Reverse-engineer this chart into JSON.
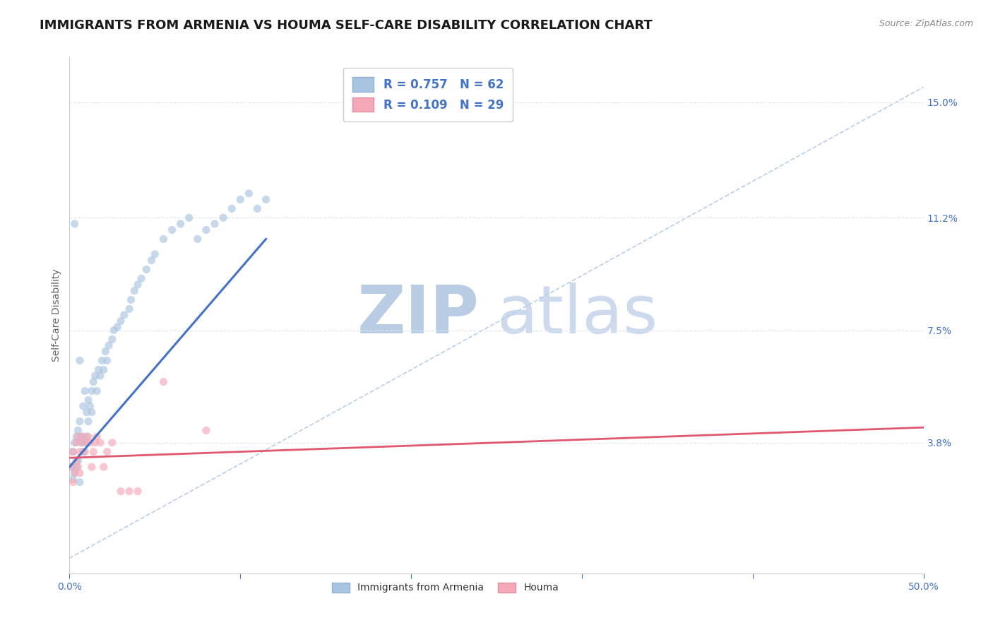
{
  "title": "IMMIGRANTS FROM ARMENIA VS HOUMA SELF-CARE DISABILITY CORRELATION CHART",
  "source": "Source: ZipAtlas.com",
  "ylabel": "Self-Care Disability",
  "xlim": [
    0.0,
    0.5
  ],
  "ylim": [
    -0.005,
    0.165
  ],
  "ytick_positions": [
    0.038,
    0.075,
    0.112,
    0.15
  ],
  "ytick_labels": [
    "3.8%",
    "7.5%",
    "11.2%",
    "15.0%"
  ],
  "legend1_label": "R = 0.757   N = 62",
  "legend2_label": "R = 0.109   N = 29",
  "legend1_color": "#a8c4e0",
  "legend2_color": "#f4a8b8",
  "blue_scatter_x": [
    0.001,
    0.002,
    0.002,
    0.003,
    0.003,
    0.004,
    0.004,
    0.005,
    0.005,
    0.006,
    0.006,
    0.007,
    0.007,
    0.008,
    0.008,
    0.009,
    0.009,
    0.01,
    0.01,
    0.011,
    0.011,
    0.012,
    0.013,
    0.013,
    0.014,
    0.015,
    0.016,
    0.017,
    0.018,
    0.019,
    0.02,
    0.021,
    0.022,
    0.023,
    0.025,
    0.026,
    0.028,
    0.03,
    0.032,
    0.035,
    0.036,
    0.038,
    0.04,
    0.042,
    0.045,
    0.048,
    0.05,
    0.055,
    0.06,
    0.065,
    0.07,
    0.075,
    0.08,
    0.085,
    0.09,
    0.095,
    0.1,
    0.105,
    0.11,
    0.115,
    0.003,
    0.006
  ],
  "blue_scatter_y": [
    0.03,
    0.026,
    0.035,
    0.028,
    0.038,
    0.03,
    0.04,
    0.032,
    0.042,
    0.025,
    0.045,
    0.038,
    0.04,
    0.035,
    0.05,
    0.038,
    0.055,
    0.04,
    0.048,
    0.045,
    0.052,
    0.05,
    0.048,
    0.055,
    0.058,
    0.06,
    0.055,
    0.062,
    0.06,
    0.065,
    0.062,
    0.068,
    0.065,
    0.07,
    0.072,
    0.075,
    0.076,
    0.078,
    0.08,
    0.082,
    0.085,
    0.088,
    0.09,
    0.092,
    0.095,
    0.098,
    0.1,
    0.105,
    0.108,
    0.11,
    0.112,
    0.105,
    0.108,
    0.11,
    0.112,
    0.115,
    0.118,
    0.12,
    0.115,
    0.118,
    0.11,
    0.065
  ],
  "pink_scatter_x": [
    0.001,
    0.002,
    0.002,
    0.003,
    0.004,
    0.004,
    0.005,
    0.005,
    0.006,
    0.006,
    0.007,
    0.008,
    0.009,
    0.01,
    0.011,
    0.012,
    0.013,
    0.014,
    0.015,
    0.016,
    0.018,
    0.02,
    0.022,
    0.025,
    0.03,
    0.035,
    0.04,
    0.055,
    0.08
  ],
  "pink_scatter_y": [
    0.03,
    0.025,
    0.035,
    0.028,
    0.032,
    0.038,
    0.03,
    0.04,
    0.035,
    0.028,
    0.038,
    0.04,
    0.035,
    0.038,
    0.04,
    0.038,
    0.03,
    0.035,
    0.038,
    0.04,
    0.038,
    0.03,
    0.035,
    0.038,
    0.022,
    0.022,
    0.022,
    0.058,
    0.042
  ],
  "blue_line_x": [
    0.0,
    0.115
  ],
  "blue_line_y": [
    0.03,
    0.105
  ],
  "blue_line_color": "#4472c4",
  "pink_line_color": "#e05870",
  "pink_line_x": [
    0.0,
    0.5
  ],
  "pink_line_y": [
    0.033,
    0.043
  ],
  "dashed_line_x": [
    0.0,
    0.5
  ],
  "dashed_line_y": [
    0.0,
    0.155
  ],
  "dashed_line_color": "#b8cfe8",
  "background_color": "#ffffff",
  "grid_color": "#dde8f0",
  "watermark_zip": "ZIP",
  "watermark_atlas": "atlas",
  "watermark_color": "#ccdaee",
  "title_fontsize": 13,
  "axis_fontsize": 10,
  "tick_fontsize": 10,
  "scatter_alpha": 0.65,
  "scatter_size": 65,
  "right_tick_color": "#4472c4"
}
